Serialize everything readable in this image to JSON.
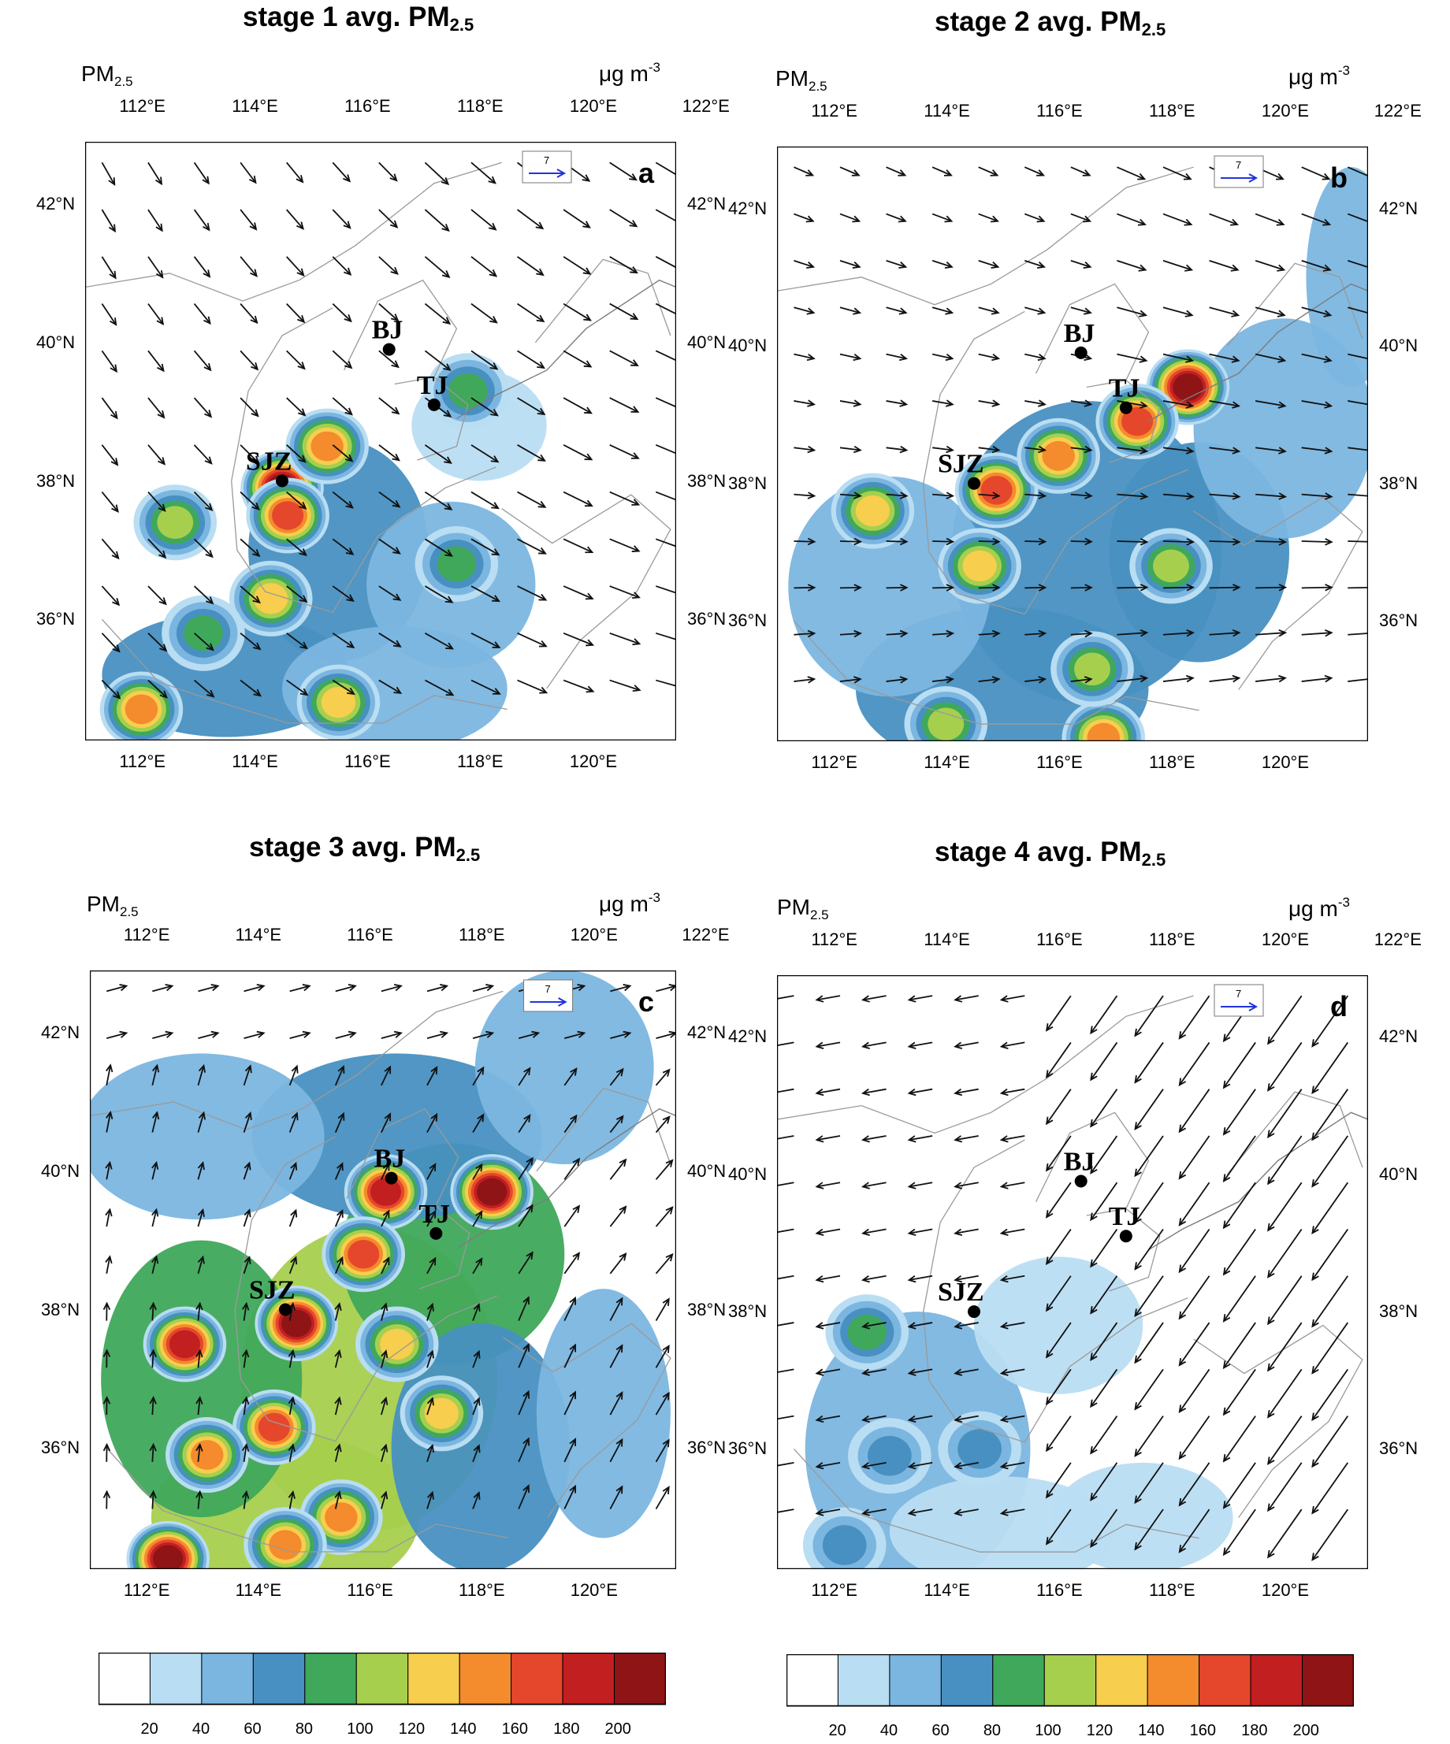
{
  "variable_label": "PM",
  "variable_sub": "2.5",
  "unit_label": "μg m",
  "unit_sup": "-3",
  "ref_vector_value": "7",
  "panels": [
    {
      "title_prefix": "stage 1 avg. PM",
      "title_sub": "2.5",
      "letter": "a",
      "top_lons": [
        "112°E",
        "114°E",
        "116°E",
        "118°E",
        "120°E",
        "122°E"
      ],
      "bottom_lons": [
        "112°E",
        "114°E",
        "116°E",
        "118°E",
        "120°E"
      ],
      "lats": [
        "42°N",
        "40°N",
        "38°N",
        "36°N"
      ],
      "regime": "nw",
      "blobs": [
        {
          "lon": 114.5,
          "lat": 37.9,
          "v": 200
        },
        {
          "lon": 114.6,
          "lat": 37.5,
          "v": 170
        },
        {
          "lon": 115.3,
          "lat": 38.5,
          "v": 150
        },
        {
          "lon": 114.3,
          "lat": 36.3,
          "v": 120
        },
        {
          "lon": 112.6,
          "lat": 37.4,
          "v": 110
        },
        {
          "lon": 112.0,
          "lat": 34.7,
          "v": 140
        },
        {
          "lon": 115.5,
          "lat": 34.8,
          "v": 120
        },
        {
          "lon": 117.8,
          "lat": 39.3,
          "v": 90
        },
        {
          "lon": 113.1,
          "lat": 35.8,
          "v": 90
        },
        {
          "lon": 117.6,
          "lat": 36.8,
          "v": 80
        }
      ],
      "bg": [
        {
          "lon": 115.5,
          "lat": 37.0,
          "v": 60,
          "sx": 1.6,
          "sy": 1.6
        },
        {
          "lon": 113.5,
          "lat": 35.2,
          "v": 60,
          "sx": 2.2,
          "sy": 0.9
        },
        {
          "lon": 116.5,
          "lat": 35.0,
          "v": 55,
          "sx": 2.0,
          "sy": 0.9
        },
        {
          "lon": 117.5,
          "lat": 36.5,
          "v": 40,
          "sx": 1.5,
          "sy": 1.2
        },
        {
          "lon": 118.0,
          "lat": 38.8,
          "v": 35,
          "sx": 1.2,
          "sy": 0.8
        }
      ]
    },
    {
      "title_prefix": "stage 2 avg. PM",
      "title_sub": "2.5",
      "letter": "b",
      "top_lons": [
        "112°E",
        "114°E",
        "116°E",
        "118°E",
        "120°E",
        "122°E"
      ],
      "bottom_lons": [
        "112°E",
        "114°E",
        "116°E",
        "118°E",
        "120°E"
      ],
      "lats": [
        "42°N",
        "40°N",
        "38°N",
        "36°N"
      ],
      "regime": "w",
      "blobs": [
        {
          "lon": 118.3,
          "lat": 39.4,
          "v": 200
        },
        {
          "lon": 117.4,
          "lat": 38.9,
          "v": 175
        },
        {
          "lon": 114.9,
          "lat": 37.9,
          "v": 165
        },
        {
          "lon": 116.0,
          "lat": 38.4,
          "v": 140
        },
        {
          "lon": 114.6,
          "lat": 36.8,
          "v": 130
        },
        {
          "lon": 112.7,
          "lat": 37.6,
          "v": 120
        },
        {
          "lon": 116.8,
          "lat": 34.3,
          "v": 140
        },
        {
          "lon": 118.0,
          "lat": 36.8,
          "v": 110
        },
        {
          "lon": 116.6,
          "lat": 35.3,
          "v": 110
        },
        {
          "lon": 114.0,
          "lat": 34.5,
          "v": 110
        }
      ],
      "bg": [
        {
          "lon": 116.5,
          "lat": 37.0,
          "v": 75,
          "sx": 2.4,
          "sy": 2.2
        },
        {
          "lon": 115.0,
          "lat": 35.0,
          "v": 70,
          "sx": 2.6,
          "sy": 1.2
        },
        {
          "lon": 118.5,
          "lat": 37.0,
          "v": 60,
          "sx": 1.6,
          "sy": 1.6
        },
        {
          "lon": 113.0,
          "lat": 36.5,
          "v": 45,
          "sx": 1.8,
          "sy": 1.6
        },
        {
          "lon": 120.0,
          "lat": 38.8,
          "v": 45,
          "sx": 1.6,
          "sy": 1.6
        },
        {
          "lon": 121.2,
          "lat": 41.0,
          "v": 40,
          "sx": 0.8,
          "sy": 1.6
        }
      ]
    },
    {
      "title_prefix": "stage 3 avg. PM",
      "title_sub": "2.5",
      "letter": "c",
      "top_lons": [
        "112°E",
        "114°E",
        "116°E",
        "118°E",
        "120°E",
        "122°E"
      ],
      "bottom_lons": [
        "112°E",
        "114°E",
        "116°E",
        "118°E",
        "120°E"
      ],
      "lats": [
        "42°N",
        "40°N",
        "38°N",
        "36°N"
      ],
      "regime": "s",
      "blobs": [
        {
          "lon": 118.2,
          "lat": 39.7,
          "v": 200
        },
        {
          "lon": 116.3,
          "lat": 39.7,
          "v": 190
        },
        {
          "lon": 114.7,
          "lat": 37.8,
          "v": 200
        },
        {
          "lon": 112.4,
          "lat": 34.4,
          "v": 200
        },
        {
          "lon": 112.7,
          "lat": 37.5,
          "v": 190
        },
        {
          "lon": 115.9,
          "lat": 38.8,
          "v": 160
        },
        {
          "lon": 114.3,
          "lat": 36.3,
          "v": 170
        },
        {
          "lon": 113.1,
          "lat": 35.9,
          "v": 150
        },
        {
          "lon": 116.5,
          "lat": 37.5,
          "v": 130
        },
        {
          "lon": 115.5,
          "lat": 35.0,
          "v": 140
        },
        {
          "lon": 114.5,
          "lat": 34.6,
          "v": 150
        },
        {
          "lon": 117.3,
          "lat": 36.5,
          "v": 120
        }
      ],
      "bg": [
        {
          "lon": 116.0,
          "lat": 37.0,
          "v": 110,
          "sx": 2.3,
          "sy": 2.2
        },
        {
          "lon": 114.5,
          "lat": 35.0,
          "v": 105,
          "sx": 2.4,
          "sy": 1.2
        },
        {
          "lon": 117.5,
          "lat": 38.8,
          "v": 90,
          "sx": 2.0,
          "sy": 1.6
        },
        {
          "lon": 113.0,
          "lat": 37.0,
          "v": 85,
          "sx": 1.8,
          "sy": 2.0
        },
        {
          "lon": 118.0,
          "lat": 36.0,
          "v": 75,
          "sx": 1.6,
          "sy": 1.8
        },
        {
          "lon": 116.5,
          "lat": 40.5,
          "v": 65,
          "sx": 2.6,
          "sy": 1.2
        },
        {
          "lon": 119.5,
          "lat": 41.5,
          "v": 55,
          "sx": 1.6,
          "sy": 1.4
        },
        {
          "lon": 113.0,
          "lat": 40.5,
          "v": 45,
          "sx": 2.2,
          "sy": 1.2
        },
        {
          "lon": 120.2,
          "lat": 36.5,
          "v": 40,
          "sx": 1.2,
          "sy": 1.8
        }
      ]
    },
    {
      "title_prefix": "stage 4 avg. PM",
      "title_sub": "2.5",
      "letter": "d",
      "top_lons": [
        "112°E",
        "114°E",
        "116°E",
        "118°E",
        "120°E",
        "122°E"
      ],
      "bottom_lons": [
        "112°E",
        "114°E",
        "116°E",
        "118°E",
        "120°E"
      ],
      "lats": [
        "42°N",
        "40°N",
        "38°N",
        "36°N"
      ],
      "regime": "ne",
      "blobs": [
        {
          "lon": 112.6,
          "lat": 37.7,
          "v": 80
        },
        {
          "lon": 113.0,
          "lat": 35.9,
          "v": 65
        },
        {
          "lon": 114.6,
          "lat": 36.0,
          "v": 70
        },
        {
          "lon": 112.2,
          "lat": 34.6,
          "v": 65
        }
      ],
      "bg": [
        {
          "lon": 113.5,
          "lat": 36.0,
          "v": 48,
          "sx": 2.0,
          "sy": 2.0
        },
        {
          "lon": 115.0,
          "lat": 34.8,
          "v": 35,
          "sx": 2.0,
          "sy": 0.8
        },
        {
          "lon": 116.0,
          "lat": 37.8,
          "v": 30,
          "sx": 1.5,
          "sy": 1.0
        },
        {
          "lon": 117.5,
          "lat": 35.0,
          "v": 30,
          "sx": 1.6,
          "sy": 0.8
        }
      ]
    }
  ],
  "cities": [
    {
      "name": "BJ",
      "lon": 116.4,
      "lat": 39.9
    },
    {
      "name": "TJ",
      "lon": 117.2,
      "lat": 39.1
    },
    {
      "name": "SJZ",
      "lon": 114.5,
      "lat": 38.0
    }
  ],
  "colorbar": {
    "labels": [
      "20",
      "40",
      "60",
      "80",
      "100",
      "120",
      "140",
      "160",
      "180",
      "200"
    ],
    "thresholds": [
      20,
      40,
      60,
      80,
      100,
      120,
      140,
      160,
      180,
      200
    ],
    "colors": [
      "#FFFFFF",
      "#B9DDF2",
      "#7BB6E0",
      "#4890C1",
      "#3FA85B",
      "#A7CF4E",
      "#F7CE4D",
      "#F48B2D",
      "#E5472C",
      "#C21F21",
      "#8F1416"
    ]
  },
  "map": {
    "lon_min": 111.0,
    "lon_max": 121.5,
    "lat_min": 34.25,
    "lat_max": 42.9
  }
}
